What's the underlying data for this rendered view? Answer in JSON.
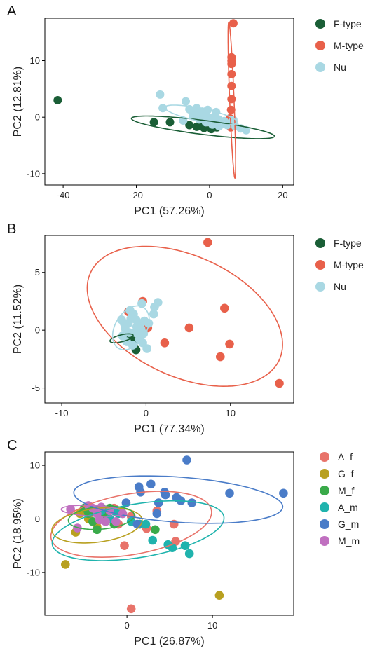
{
  "chart_data": [
    {
      "type": "scatter",
      "panel_label": "A",
      "xlabel": "PC1 (57.26%)",
      "ylabel": "PC2 (12.81%)",
      "xlim": [
        -45,
        23
      ],
      "ylim": [
        -12,
        17.5
      ],
      "xticks": [
        -40,
        -20,
        0,
        20
      ],
      "yticks": [
        -10,
        0,
        10
      ],
      "legend_position": "right",
      "series": [
        {
          "name": "F-type",
          "color": "#1a5e36",
          "points": [
            [
              -41.5,
              3.0
            ],
            [
              -15.2,
              -0.9
            ],
            [
              -10.8,
              -0.9
            ],
            [
              -5.5,
              -1.4
            ],
            [
              -3.5,
              -1.7
            ],
            [
              -1.5,
              -1.9
            ],
            [
              0.5,
              -2.1
            ],
            [
              2.0,
              -1.8
            ],
            [
              -2.5,
              -1.2
            ]
          ],
          "ellipse": {
            "cx": -1.8,
            "cy": -1.8,
            "rx": 19.6,
            "ry": 1.25,
            "angle_deg": -4.6
          }
        },
        {
          "name": "M-type",
          "color": "#e8604a",
          "points": [
            [
              6.5,
              16.6
            ],
            [
              6.0,
              10.6
            ],
            [
              6.0,
              10.0
            ],
            [
              6.0,
              9.4
            ],
            [
              6.0,
              7.6
            ],
            [
              6.0,
              5.5
            ],
            [
              6.0,
              3.2
            ],
            [
              5.9,
              1.3
            ],
            [
              5.6,
              -0.2
            ],
            [
              6.0,
              -1.3
            ],
            [
              5.8,
              -1.8
            ]
          ],
          "ellipse": {
            "cx": 6.1,
            "cy": 3.0,
            "rx": 0.6,
            "ry": 13.8,
            "angle_deg": 3.5
          }
        },
        {
          "name": "Nu",
          "color": "#a9d8e3",
          "points": [
            [
              -13.5,
              4.0
            ],
            [
              -12.8,
              1.6
            ],
            [
              -6.5,
              2.8
            ],
            [
              -7.2,
              -0.6
            ],
            [
              -5.5,
              1.4
            ],
            [
              -4.8,
              1.0
            ],
            [
              -4.0,
              0.8
            ],
            [
              -3.2,
              0.6
            ],
            [
              -2.4,
              0.4
            ],
            [
              -1.6,
              0.2
            ],
            [
              -0.8,
              0.0
            ],
            [
              0.0,
              -0.2
            ],
            [
              0.8,
              -0.4
            ],
            [
              1.6,
              -0.6
            ],
            [
              2.4,
              -0.8
            ],
            [
              3.2,
              -1.0
            ],
            [
              4.0,
              -1.2
            ],
            [
              4.8,
              -1.4
            ],
            [
              -3.5,
              1.6
            ],
            [
              -2.0,
              1.0
            ],
            [
              -1.0,
              0.6
            ],
            [
              1.0,
              0.0
            ],
            [
              2.5,
              -0.4
            ],
            [
              4.0,
              -0.7
            ],
            [
              5.5,
              -1.1
            ],
            [
              7.0,
              -1.6
            ],
            [
              8.5,
              -2.0
            ],
            [
              10.0,
              -2.3
            ],
            [
              -1.0,
              -0.9
            ],
            [
              0.8,
              -1.3
            ],
            [
              2.6,
              -1.6
            ],
            [
              -4.5,
              0.2
            ],
            [
              -2.8,
              -0.4
            ],
            [
              6.5,
              -0.5
            ],
            [
              1.8,
              0.9
            ],
            [
              -0.5,
              1.3
            ]
          ],
          "ellipse": {
            "cx": -2.3,
            "cy": 0.4,
            "rx": 10.0,
            "ry": 1.15,
            "angle_deg": -7.5
          }
        }
      ]
    },
    {
      "type": "scatter",
      "panel_label": "B",
      "xlabel": "PC1 (77.34%)",
      "ylabel": "PC2 (11.52%)",
      "xlim": [
        -12,
        17.5
      ],
      "ylim": [
        -6.3,
        8.2
      ],
      "xticks": [
        -10,
        0,
        10
      ],
      "yticks": [
        -5,
        0,
        5
      ],
      "legend_position": "right",
      "series": [
        {
          "name": "F-type",
          "color": "#1a5e36",
          "points": [
            [
              -1.2,
              -1.7
            ],
            [
              -1.6,
              -0.9
            ],
            [
              -2.0,
              -0.5
            ]
          ],
          "ellipse": {
            "cx": -2.9,
            "cy": -0.7,
            "rx": 1.4,
            "ry": 0.3,
            "angle_deg": 10
          }
        },
        {
          "name": "M-type",
          "color": "#e8604a",
          "points": [
            [
              7.3,
              7.6
            ],
            [
              -2.1,
              1.6
            ],
            [
              -0.4,
              2.5
            ],
            [
              0.2,
              0.2
            ],
            [
              2.2,
              -1.1
            ],
            [
              5.1,
              0.2
            ],
            [
              9.3,
              1.9
            ],
            [
              9.9,
              -1.2
            ],
            [
              8.8,
              -2.3
            ],
            [
              15.8,
              -4.6
            ]
          ],
          "ellipse": {
            "cx": 4.6,
            "cy": 1.2,
            "rx": 11.9,
            "ry": 5.4,
            "angle_deg": -15
          }
        },
        {
          "name": "Nu",
          "color": "#a9d8e3",
          "points": [
            [
              -2.5,
              0.2
            ],
            [
              -2.1,
              0.6
            ],
            [
              -1.8,
              1.0
            ],
            [
              -1.5,
              1.4
            ],
            [
              -1.2,
              0.9
            ],
            [
              -0.9,
              0.5
            ],
            [
              -0.6,
              0.1
            ],
            [
              -0.3,
              -0.3
            ],
            [
              -2.8,
              -0.5
            ],
            [
              -2.3,
              -1.0
            ],
            [
              -1.6,
              -1.3
            ],
            [
              -0.8,
              -0.8
            ],
            [
              0.1,
              -1.6
            ],
            [
              -0.5,
              2.3
            ],
            [
              1.0,
              2.0
            ],
            [
              1.4,
              2.4
            ],
            [
              0.9,
              1.4
            ],
            [
              -0.2,
              0.8
            ],
            [
              -2.9,
              0.9
            ],
            [
              -1.3,
              -0.2
            ],
            [
              -2.0,
              -0.2
            ],
            [
              -1.1,
              0.3
            ],
            [
              -0.4,
              -1.1
            ],
            [
              -2.6,
              0.6
            ],
            [
              -1.9,
              1.7
            ],
            [
              0.3,
              0.6
            ]
          ],
          "ellipse": {
            "cx": -1.8,
            "cy": 0.2,
            "rx": 2.4,
            "ry": 1.6,
            "angle_deg": 35
          }
        }
      ]
    },
    {
      "type": "scatter",
      "panel_label": "C",
      "xlabel": "PC1 (26.87%)",
      "ylabel": "PC2 (18.95%)",
      "xlim": [
        -9.6,
        19.5
      ],
      "ylim": [
        -18,
        12.5
      ],
      "xticks": [
        0,
        10
      ],
      "yticks": [
        -10,
        0,
        10
      ],
      "legend_position": "right",
      "series": [
        {
          "name": "A_f",
          "color": "#e8736a",
          "points": [
            [
              -3.0,
              0.5
            ],
            [
              -1.5,
              2.0
            ],
            [
              -1.0,
              -1.0
            ],
            [
              0.5,
              0.5
            ],
            [
              1.5,
              -1.0
            ],
            [
              2.3,
              -1.8
            ],
            [
              3.5,
              1.5
            ],
            [
              5.5,
              -1.0
            ],
            [
              5.7,
              -4.2
            ],
            [
              6.8,
              -5.0
            ],
            [
              -0.3,
              -5.0
            ],
            [
              0.5,
              -16.8
            ],
            [
              -3.5,
              1.5
            ],
            [
              -2.5,
              0.0
            ]
          ],
          "ellipse": {
            "cx": 0.5,
            "cy": -1.0,
            "rx": 9.8,
            "ry": 5.5,
            "angle_deg": 20
          }
        },
        {
          "name": "G_f",
          "color": "#b8a020",
          "points": [
            [
              -7.2,
              -8.5
            ],
            [
              -6.0,
              -2.5
            ],
            [
              10.8,
              -14.3
            ],
            [
              -5.5,
              1.0
            ],
            [
              -4.5,
              0.0
            ],
            [
              -3.5,
              -1.5
            ]
          ],
          "ellipse": {
            "cx": -3.5,
            "cy": -1.2,
            "rx": 5.4,
            "ry": 3.1,
            "angle_deg": 15
          }
        },
        {
          "name": "M_f",
          "color": "#3aaa4a",
          "points": [
            [
              -5.0,
              2.0
            ],
            [
              -4.5,
              1.0
            ],
            [
              -3.5,
              -2.0
            ],
            [
              -2.5,
              0.5
            ],
            [
              -1.5,
              -1.0
            ],
            [
              -0.5,
              1.0
            ],
            [
              3.3,
              -2.0
            ],
            [
              -3.0,
              1.8
            ],
            [
              -2.0,
              2.0
            ],
            [
              -4.0,
              -0.5
            ]
          ],
          "ellipse": {
            "cx": -3.0,
            "cy": 0.2,
            "rx": 3.9,
            "ry": 2.1,
            "angle_deg": 10
          }
        },
        {
          "name": "A_m",
          "color": "#1fb3ad",
          "points": [
            [
              -3.0,
              1.5
            ],
            [
              -2.0,
              0.0
            ],
            [
              -1.0,
              1.0
            ],
            [
              0.5,
              -0.5
            ],
            [
              1.5,
              -1.0
            ],
            [
              3.0,
              -4.0
            ],
            [
              4.8,
              -4.8
            ],
            [
              5.3,
              -5.4
            ],
            [
              6.8,
              -5.0
            ],
            [
              7.3,
              -6.5
            ],
            [
              2.2,
              -1.0
            ],
            [
              -1.5,
              1.5
            ]
          ],
          "ellipse": {
            "cx": 1.3,
            "cy": -2.2,
            "rx": 10.4,
            "ry": 4.9,
            "angle_deg": 17
          }
        },
        {
          "name": "G_m",
          "color": "#4a7cc8",
          "points": [
            [
              7.0,
              11.0
            ],
            [
              1.4,
              6.0
            ],
            [
              1.6,
              5.0
            ],
            [
              2.8,
              6.5
            ],
            [
              4.4,
              5.0
            ],
            [
              4.5,
              4.5
            ],
            [
              5.8,
              4.0
            ],
            [
              3.7,
              3.0
            ],
            [
              -0.1,
              3.0
            ],
            [
              6.3,
              3.4
            ],
            [
              7.6,
              3.0
            ],
            [
              12.0,
              4.8
            ],
            [
              18.3,
              4.8
            ],
            [
              3.5,
              1.0
            ],
            [
              1.2,
              -1.0
            ]
          ],
          "ellipse": {
            "cx": 6.0,
            "cy": 3.6,
            "rx": 12.3,
            "ry": 4.2,
            "angle_deg": -7
          }
        },
        {
          "name": "M_m",
          "color": "#c070c0",
          "points": [
            [
              -6.6,
              1.8
            ],
            [
              -5.8,
              -1.7
            ],
            [
              -4.5,
              2.5
            ],
            [
              -4.0,
              2.0
            ],
            [
              -3.5,
              1.0
            ],
            [
              -3.0,
              2.2
            ],
            [
              -2.5,
              -0.5
            ],
            [
              -2.0,
              1.5
            ],
            [
              -1.3,
              -0.5
            ],
            [
              -0.5,
              1.0
            ],
            [
              -3.2,
              -0.2
            ]
          ],
          "ellipse": {
            "cx": -4.0,
            "cy": 1.5,
            "rx": 3.7,
            "ry": 1.0,
            "angle_deg": -5
          }
        }
      ]
    }
  ]
}
